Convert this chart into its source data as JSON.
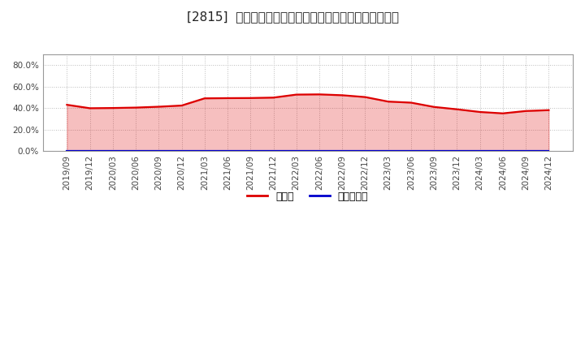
{
  "title": "[2815]  現顔金、有利子負債の総資産に対する比率の推移",
  "x_labels": [
    "2019/09",
    "2019/12",
    "2020/03",
    "2020/06",
    "2020/09",
    "2020/12",
    "2021/03",
    "2021/06",
    "2021/09",
    "2021/12",
    "2022/03",
    "2022/06",
    "2022/09",
    "2022/12",
    "2023/03",
    "2023/06",
    "2023/09",
    "2023/12",
    "2024/03",
    "2024/06",
    "2024/09",
    "2024/12"
  ],
  "cash_values": [
    0.43,
    0.398,
    0.4,
    0.404,
    0.412,
    0.423,
    0.49,
    0.492,
    0.493,
    0.497,
    0.525,
    0.527,
    0.519,
    0.502,
    0.46,
    0.45,
    0.41,
    0.388,
    0.363,
    0.35,
    0.372,
    0.38
  ],
  "debt_values": [
    0.002,
    0.002,
    0.002,
    0.002,
    0.002,
    0.002,
    0.002,
    0.002,
    0.002,
    0.002,
    0.002,
    0.002,
    0.002,
    0.002,
    0.002,
    0.002,
    0.002,
    0.002,
    0.002,
    0.002,
    0.002,
    0.002
  ],
  "cash_color": "#dd0000",
  "debt_color": "#0000cc",
  "background_color": "#ffffff",
  "plot_background": "#ffffff",
  "grid_color": "#bbbbbb",
  "ylim": [
    0.0,
    0.9
  ],
  "yticks": [
    0.0,
    0.2,
    0.4,
    0.6,
    0.8
  ],
  "legend_cash": "現顔金",
  "legend_debt": "有利子負債",
  "title_fontsize": 11,
  "tick_fontsize": 7.5,
  "legend_fontsize": 9
}
